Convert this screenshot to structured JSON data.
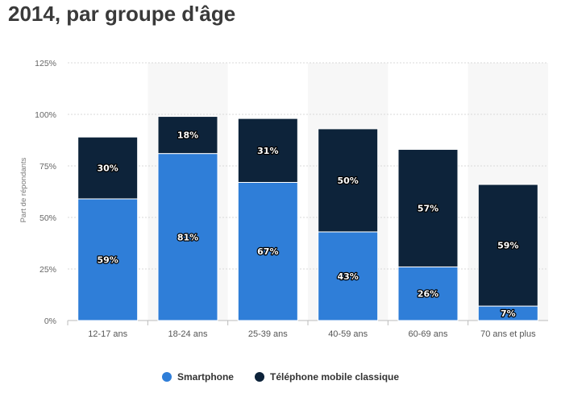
{
  "title": "2014, par groupe d'âge",
  "chart_data": {
    "type": "bar",
    "stacked": true,
    "title": "2014, par groupe d'âge",
    "xlabel": "",
    "ylabel": "Part de répondants",
    "ylim": [
      0,
      125
    ],
    "yticks": [
      0,
      25,
      50,
      75,
      100,
      125
    ],
    "ytick_labels": [
      "0%",
      "25%",
      "50%",
      "75%",
      "100%",
      "125%"
    ],
    "categories": [
      "12-17 ans",
      "18-24 ans",
      "25-39 ans",
      "40-59 ans",
      "60-69 ans",
      "70 ans et plus"
    ],
    "series": [
      {
        "name": "Smartphone",
        "color": "#2f7ed8",
        "values": [
          59,
          81,
          67,
          43,
          26,
          7
        ],
        "labels": [
          "59%",
          "81%",
          "67%",
          "43%",
          "26%",
          "7%"
        ]
      },
      {
        "name": "Téléphone mobile classique",
        "color": "#0d233a",
        "values": [
          30,
          18,
          31,
          50,
          57,
          59
        ],
        "labels": [
          "30%",
          "18%",
          "31%",
          "50%",
          "57%",
          "59%"
        ]
      }
    ],
    "grid": true,
    "legend": "bottom-center"
  }
}
